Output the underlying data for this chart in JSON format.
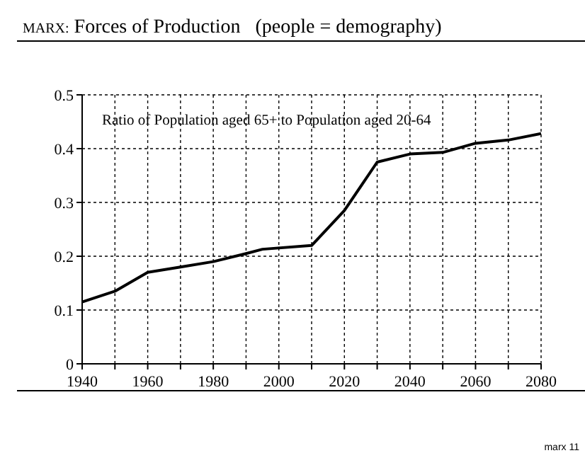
{
  "chart_data": {
    "type": "line",
    "title": "MARX: Forces of Production   (people = demography)",
    "x": [
      1940,
      1950,
      1960,
      1970,
      1980,
      1990,
      1995,
      2010,
      2020,
      2030,
      2040,
      2050,
      2060,
      2070,
      2080
    ],
    "series": [
      {
        "color": "#000000",
        "values": [
          0.115,
          0.135,
          0.17,
          0.18,
          0.19,
          0.205,
          0.213,
          0.22,
          0.285,
          0.375,
          0.39,
          0.393,
          0.41,
          0.416,
          0.428
        ]
      }
    ],
    "xlim": [
      1940,
      2080
    ],
    "xticks": [
      1940,
      {
        "value": 1950,
        "label": null
      },
      1960,
      {
        "value": 1970,
        "label": null
      },
      1980,
      {
        "value": 1990,
        "label": null
      },
      2000,
      {
        "value": 2010,
        "label": null
      },
      2020,
      {
        "value": 2030,
        "label": null
      },
      2040,
      {
        "value": 2050,
        "label": null
      },
      2060,
      {
        "value": 2070,
        "label": null
      },
      2080
    ],
    "ylim": [
      0,
      0.5
    ],
    "yticks": [
      0,
      0.1,
      0.2,
      0.3,
      0.4,
      0.5
    ],
    "grid": true,
    "line_style": "solid",
    "annotations": [
      "Ratio of Population aged 65+ to Population aged 20-64",
      "marx 11"
    ]
  }
}
